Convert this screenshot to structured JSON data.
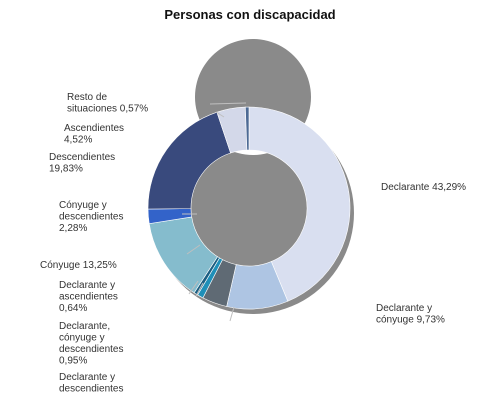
{
  "chart_data": {
    "type": "pie",
    "style": "donut",
    "title": "Personas con discapacidad",
    "unit": "%",
    "slices": [
      {
        "name": "Declarante",
        "value": 43.29,
        "label": [
          "Declarante 43,29%"
        ],
        "color": "#d9dff0"
      },
      {
        "name": "Declarante y cónyuge",
        "value": 9.73,
        "label": [
          "Declarante y",
          "cónyuge 9,73%"
        ],
        "color": "#aec5e3"
      },
      {
        "name": "Declarante y descendientes",
        "value": 3.95,
        "label": [
          "Declarante y",
          "descendientes"
        ],
        "color": "#5f6a74"
      },
      {
        "name": "Declarante, cónyuge y descendientes",
        "value": 0.95,
        "label": [
          "Declarante,",
          "cónyuge y",
          "descendientes",
          "0,95%"
        ],
        "color": "#1f8fb8"
      },
      {
        "name": "Declarante y ascendientes",
        "value": 0.64,
        "label": [
          "Declarante y",
          "ascendientes",
          "0,64%"
        ],
        "color": "#1c5f82"
      },
      {
        "name": "Cónyuge",
        "value": 13.25,
        "label": [
          "Cónyuge 13,25%"
        ],
        "color": "#85bccd"
      },
      {
        "name": "Cónyuge y descendientes",
        "value": 2.28,
        "label": [
          "Cónyuge y",
          "descendientes",
          "2,28%"
        ],
        "color": "#3363c9"
      },
      {
        "name": "Descendientes",
        "value": 19.83,
        "label": [
          "Descendientes",
          "19,83%"
        ],
        "color": "#394a7d"
      },
      {
        "name": "Ascendientes",
        "value": 4.52,
        "label": [
          "Ascendientes",
          "4,52%"
        ],
        "color": "#d3d8e9"
      },
      {
        "name": "Resto de situaciones",
        "value": 0.57,
        "label": [
          "Resto de",
          "situaciones 0,57%"
        ],
        "color": "#4d6a94"
      }
    ]
  }
}
